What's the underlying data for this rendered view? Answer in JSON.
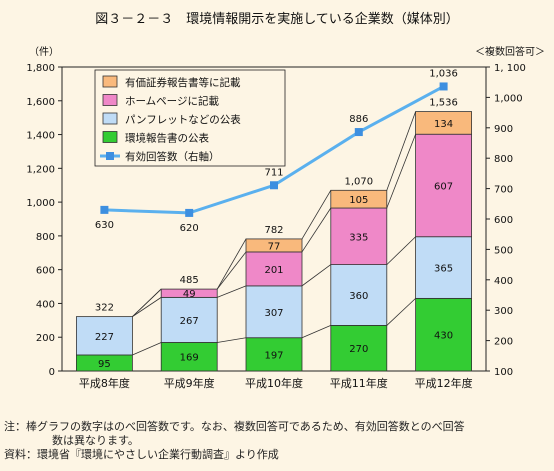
{
  "chart_data": {
    "type": "bar",
    "title": "図３－２－３　環境情報開示を実施している企業数（媒体別）",
    "ylabel_left": "（件）",
    "ylabel_right": "＜複数回答可＞",
    "categories": [
      "平成8年度",
      "平成9年度",
      "平成10年度",
      "平成11年度",
      "平成12年度"
    ],
    "ylim_left": [
      0,
      1800
    ],
    "yticks_left": [
      "0",
      "200",
      "400",
      "600",
      "800",
      "1,000",
      "1,200",
      "1,400",
      "1,600",
      "1,800"
    ],
    "ylim_right": [
      100,
      1100
    ],
    "yticks_right": [
      "100",
      "200",
      "300",
      "400",
      "500",
      "600",
      "700",
      "800",
      "900",
      "1,000",
      "1, 100"
    ],
    "series": [
      {
        "name": "環境報告書の公表",
        "color": "#33cc33",
        "values": [
          95,
          169,
          197,
          270,
          430
        ],
        "labels": [
          "95",
          "169",
          "197",
          "270",
          "430"
        ]
      },
      {
        "name": "パンフレットなどの公表",
        "color": "#c0dcf6",
        "values": [
          227,
          267,
          307,
          360,
          365
        ],
        "labels": [
          "227",
          "267",
          "307",
          "360",
          "365"
        ]
      },
      {
        "name": "ホームページに記載",
        "color": "#ef88c8",
        "values": [
          0,
          49,
          201,
          335,
          607
        ],
        "labels": [
          "",
          "49",
          "201",
          "335",
          "607"
        ]
      },
      {
        "name": "有価証券報告書等に記載",
        "color": "#f9b97c",
        "values": [
          0,
          0,
          77,
          105,
          134
        ],
        "labels": [
          "",
          "",
          "77",
          "105",
          "134"
        ]
      }
    ],
    "totals": [
      "322",
      "485",
      "782",
      "1,070",
      "1,536"
    ],
    "total_values": [
      322,
      485,
      782,
      1070,
      1536
    ],
    "line": {
      "name": "有効回答数（右軸）",
      "color": "#5ab0ee",
      "values": [
        630,
        620,
        711,
        886,
        1036
      ],
      "labels": [
        "630",
        "620",
        "711",
        "886",
        "1,036"
      ]
    },
    "legend_order": [
      "有価証券報告書等に記載",
      "ホームページに記載",
      "パンフレットなどの公表",
      "環境報告書の公表",
      "有効回答数（右軸）"
    ],
    "legend_position": "top-left"
  },
  "notes": {
    "line1": "注：棒グラフの数字はのべ回答数です。なお、複数回答可であるため、有効回答数とのべ回答",
    "line2": "数は異なります。",
    "line3": "資料：環境省『環境にやさしい企業行動調査』より作成"
  }
}
